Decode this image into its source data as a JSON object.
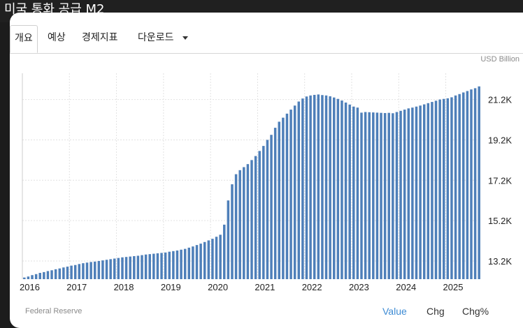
{
  "header": {
    "title": "미국 통화 공급 M2"
  },
  "tabs": [
    {
      "label": "개요",
      "active": true
    },
    {
      "label": "예상",
      "active": false
    },
    {
      "label": "경제지표",
      "active": false
    },
    {
      "label": "다운로드",
      "active": false,
      "dropdown": true
    }
  ],
  "footer": {
    "source": "Federal Reserve",
    "modes": [
      "Value",
      "Chg",
      "Chg%"
    ],
    "active_mode": "Value"
  },
  "colors": {
    "bar": "#4e7fb9",
    "active_mode": "#3d8bd4"
  },
  "chart_data": {
    "type": "bar",
    "unit": "USD Billion",
    "grid": true,
    "ylim": [
      12300,
      22500
    ],
    "y_ticks": [
      13200,
      15200,
      17200,
      19200,
      21200
    ],
    "y_tick_labels": [
      "13.2K",
      "15.2K",
      "17.2K",
      "19.2K",
      "21.2K"
    ],
    "x_tick_labels": [
      "2016",
      "2017",
      "2018",
      "2019",
      "2020",
      "2021",
      "2022",
      "2023",
      "2024",
      "2025"
    ],
    "x_tick_positions": [
      0,
      12,
      24,
      36,
      48,
      60,
      72,
      84,
      96,
      108
    ],
    "series": [
      {
        "values": [
          12380,
          12430,
          12500,
          12550,
          12610,
          12650,
          12700,
          12740,
          12790,
          12830,
          12880,
          12920,
          12970,
          13000,
          13050,
          13090,
          13120,
          13150,
          13170,
          13200,
          13230,
          13260,
          13290,
          13320,
          13350,
          13380,
          13400,
          13420,
          13440,
          13460,
          13490,
          13520,
          13540,
          13560,
          13580,
          13600,
          13620,
          13660,
          13690,
          13720,
          13760,
          13800,
          13860,
          13920,
          13990,
          14060,
          14140,
          14220,
          14300,
          14400,
          14500,
          15000,
          16200,
          17000,
          17500,
          17700,
          17850,
          18000,
          18200,
          18400,
          18650,
          18900,
          19200,
          19450,
          19800,
          20100,
          20300,
          20500,
          20700,
          20900,
          21100,
          21250,
          21350,
          21400,
          21430,
          21450,
          21420,
          21400,
          21360,
          21300,
          21230,
          21150,
          21050,
          20950,
          20850,
          20800,
          20550,
          20580,
          20570,
          20560,
          20550,
          20540,
          20530,
          20540,
          20520,
          20580,
          20640,
          20700,
          20760,
          20800,
          20850,
          20900,
          20960,
          21020,
          21080,
          21140,
          21200,
          21230,
          21260,
          21310,
          21400,
          21470,
          21550,
          21620,
          21700,
          21760,
          21850
        ]
      }
    ]
  }
}
